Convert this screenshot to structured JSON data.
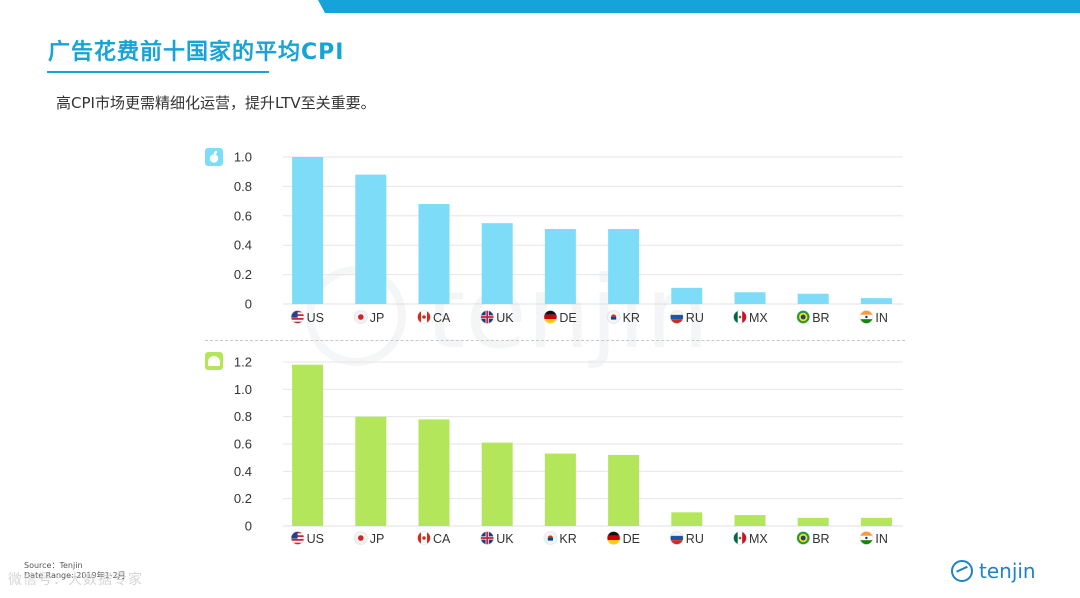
{
  "header": {
    "title": "广告花费前十国家的平均CPI",
    "subtitle": "高CPI市场更需精细化运营，提升LTV至关重要。"
  },
  "watermark": {
    "text": "tenjin"
  },
  "footer": {
    "source": "Source：Tenjin",
    "date_range": "Date Range: 2019年1-2月",
    "wechat": "微信号：大数据专家",
    "brand": "tenjin"
  },
  "colors": {
    "accent": "#16a4d6",
    "ios_bar": "#7ddcf8",
    "android_bar": "#b3e65a",
    "ios_icon_bg": "#7ddcf8",
    "android_icon_bg": "#b3e65a"
  },
  "chart_data": [
    {
      "type": "bar",
      "platform_icon": "apple-icon",
      "categories": [
        "US",
        "JP",
        "CA",
        "UK",
        "DE",
        "KR",
        "RU",
        "MX",
        "BR",
        "IN"
      ],
      "flag_icons": [
        "us-flag-icon",
        "jp-flag-icon",
        "ca-flag-icon",
        "uk-flag-icon",
        "de-flag-icon",
        "kr-flag-icon",
        "ru-flag-icon",
        "mx-flag-icon",
        "br-flag-icon",
        "in-flag-icon"
      ],
      "values": [
        1.0,
        0.88,
        0.68,
        0.55,
        0.51,
        0.51,
        0.11,
        0.08,
        0.07,
        0.04
      ],
      "ylim": [
        0,
        1.0
      ],
      "yticks": [
        0,
        0.2,
        0.4,
        0.6,
        0.8,
        1.0
      ],
      "ytick_labels": [
        "0",
        "0.2",
        "0.4",
        "0.6",
        "0.8",
        "1.0"
      ],
      "grid": true,
      "color": "#7ddcf8"
    },
    {
      "type": "bar",
      "platform_icon": "android-icon",
      "categories": [
        "US",
        "JP",
        "CA",
        "UK",
        "KR",
        "DE",
        "RU",
        "MX",
        "BR",
        "IN"
      ],
      "flag_icons": [
        "us-flag-icon",
        "jp-flag-icon",
        "ca-flag-icon",
        "uk-flag-icon",
        "kr-flag-icon",
        "de-flag-icon",
        "ru-flag-icon",
        "mx-flag-icon",
        "br-flag-icon",
        "in-flag-icon"
      ],
      "values": [
        1.18,
        0.8,
        0.78,
        0.61,
        0.53,
        0.52,
        0.1,
        0.08,
        0.06,
        0.06
      ],
      "ylim": [
        0,
        1.2
      ],
      "yticks": [
        0,
        0.2,
        0.4,
        0.6,
        0.8,
        1.0,
        1.2
      ],
      "ytick_labels": [
        "0",
        "0.2",
        "0.4",
        "0.6",
        "0.8",
        "1.0",
        "1.2"
      ],
      "grid": true,
      "color": "#b3e65a"
    }
  ]
}
